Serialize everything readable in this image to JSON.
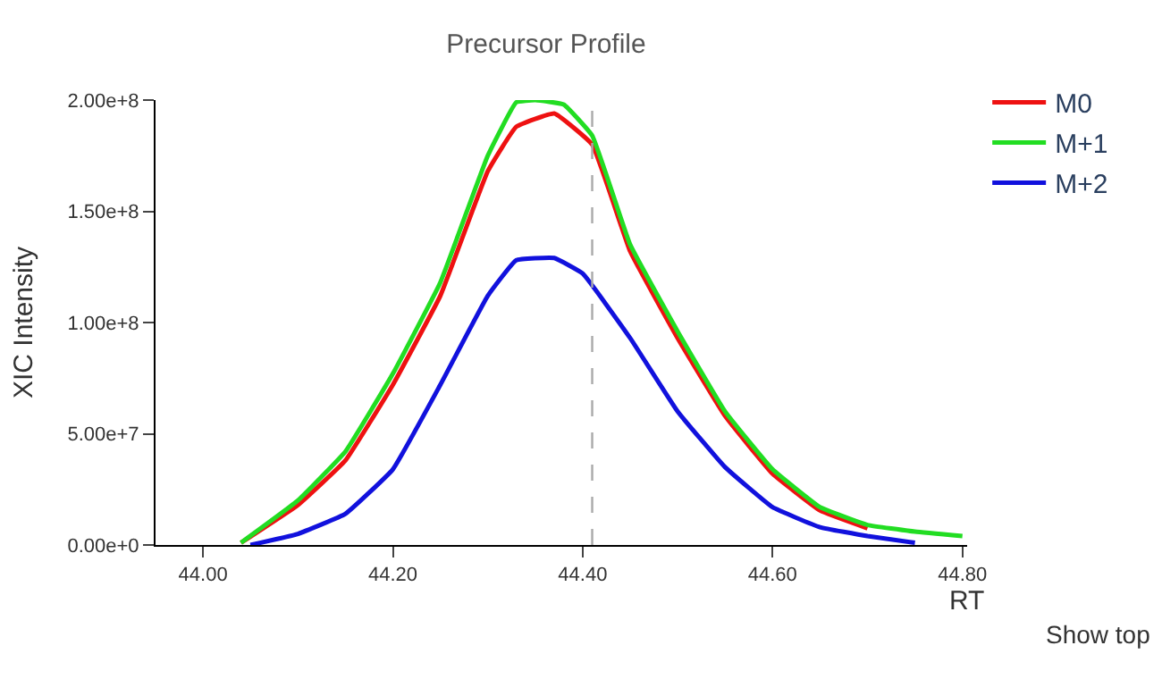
{
  "chart_data": {
    "type": "line",
    "title": "Precursor Profile",
    "xlabel": "RT",
    "ylabel": "XIC Intensity",
    "xlim": [
      43.95,
      44.805
    ],
    "xticks": [
      {
        "value": 44.0,
        "label": "44.00"
      },
      {
        "value": 44.2,
        "label": "44.20"
      },
      {
        "value": 44.4,
        "label": "44.40"
      },
      {
        "value": 44.6,
        "label": "44.60"
      },
      {
        "value": 44.8,
        "label": "44.80"
      }
    ],
    "ylim": [
      0,
      200000000
    ],
    "yticks": [
      {
        "value": 0,
        "label": "0.00e+0"
      },
      {
        "value": 50000000,
        "label": "5.00e+7"
      },
      {
        "value": 100000000,
        "label": "1.00e+8"
      },
      {
        "value": 150000000,
        "label": "1.50e+8"
      },
      {
        "value": 200000000,
        "label": "2.00e+8"
      }
    ],
    "legend": "top right",
    "marker": "none",
    "line_style": "solid",
    "ref_lines": [
      {
        "axis": "x",
        "value": 44.41,
        "color": "#aaaaaa",
        "line_style": "dashed"
      }
    ],
    "annotations": [
      "Show top"
    ],
    "series": [
      {
        "name": "M0",
        "color": "#ee1111",
        "x": [
          44.04,
          44.1,
          44.15,
          44.2,
          44.25,
          44.3,
          44.33,
          44.37,
          44.41,
          44.45,
          44.5,
          44.55,
          44.6,
          44.65,
          44.7
        ],
        "values": [
          1000000,
          18000000,
          38000000,
          72000000,
          112000000,
          168000000,
          188000000,
          194000000,
          180000000,
          132000000,
          93000000,
          58000000,
          32000000,
          15500000,
          7500000
        ]
      },
      {
        "name": "M+1",
        "color": "#22dd22",
        "x": [
          44.04,
          44.1,
          44.15,
          44.2,
          44.25,
          44.3,
          44.33,
          44.35,
          44.38,
          44.41,
          44.45,
          44.5,
          44.55,
          44.6,
          44.65,
          44.7,
          44.75,
          44.8
        ],
        "values": [
          1000000,
          20000000,
          42000000,
          77000000,
          118000000,
          175000000,
          199000000,
          200000000,
          198000000,
          184000000,
          135000000,
          96000000,
          60000000,
          34000000,
          17000000,
          9000000,
          6000000,
          4000000
        ]
      },
      {
        "name": "M+2",
        "color": "#1111dd",
        "x": [
          44.05,
          44.1,
          44.15,
          44.2,
          44.25,
          44.3,
          44.33,
          44.37,
          44.4,
          44.45,
          44.5,
          44.55,
          44.6,
          44.65,
          44.7,
          44.75
        ],
        "values": [
          0,
          5000000,
          14000000,
          34000000,
          72000000,
          112000000,
          128000000,
          129000000,
          122000000,
          93000000,
          60000000,
          35000000,
          17000000,
          8000000,
          4000000,
          1000000
        ]
      }
    ]
  }
}
